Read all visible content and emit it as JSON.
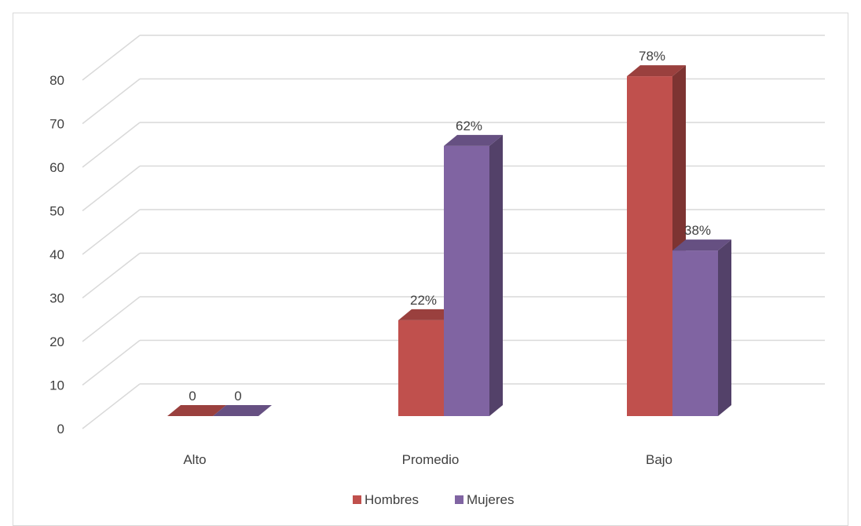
{
  "chart_data": {
    "type": "bar",
    "style": "3d-clustered-column",
    "categories": [
      "Alto",
      "Promedio",
      "Bajo"
    ],
    "series": [
      {
        "name": "Hombres",
        "values": [
          0,
          22,
          78
        ],
        "labels": [
          "0",
          "22%",
          "78%"
        ],
        "color": "#C0504D"
      },
      {
        "name": "Mujeres",
        "values": [
          0,
          62,
          38
        ],
        "labels": [
          "0",
          "62%",
          "38%"
        ],
        "color": "#8064A2"
      }
    ],
    "title": "",
    "xlabel": "",
    "ylabel": "",
    "ylim": [
      0,
      80
    ],
    "yticks": [
      "0",
      "10",
      "20",
      "30",
      "40",
      "50",
      "60",
      "70",
      "80"
    ],
    "grid": true,
    "legend": "bottom"
  }
}
